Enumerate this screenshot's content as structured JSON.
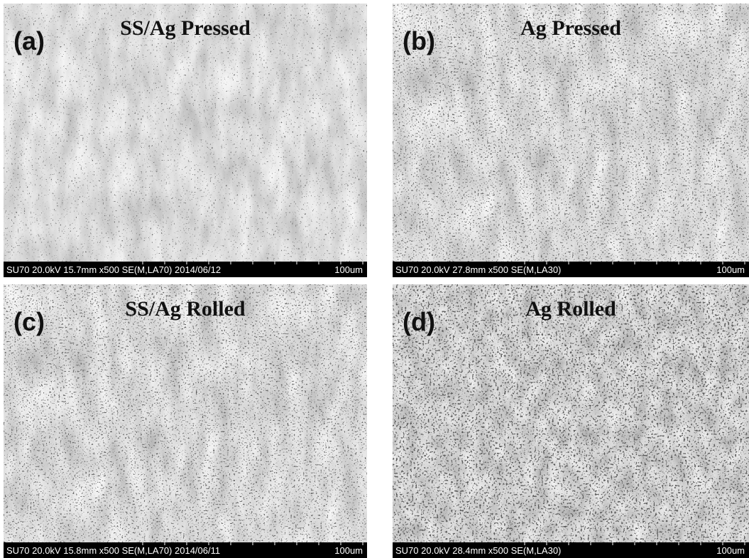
{
  "panels": [
    {
      "label": "(a)",
      "title": "SS/Ag Pressed",
      "info": "SU70 20.0kV 15.7mm x500 SE(M,LA70) 2014/06/12",
      "scale": "100um"
    },
    {
      "label": "(b)",
      "title": "Ag Pressed",
      "info": "SU70 20.0kV 27.8mm x500 SE(M,LA30)",
      "scale": "100um"
    },
    {
      "label": "(c)",
      "title": "SS/Ag Rolled",
      "info": "SU70 20.0kV 15.8mm x500 SE(M,LA70) 2014/06/11",
      "scale": "100um"
    },
    {
      "label": "(d)",
      "title": "Ag Rolled",
      "info": "SU70 20.0kV 28.4mm x500 SE(M,LA30)",
      "scale": "100um"
    }
  ]
}
